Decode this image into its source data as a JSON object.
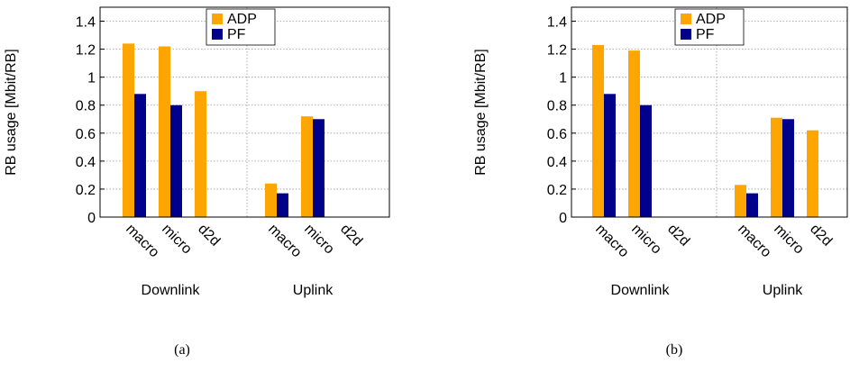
{
  "chart_data": [
    {
      "type": "bar",
      "caption": "(a)",
      "ylabel": "RB usage [Mbit/RB]",
      "ylim": [
        0,
        1.5
      ],
      "yticks": [
        0,
        0.2,
        0.4,
        0.6,
        0.8,
        1,
        1.2,
        1.4
      ],
      "ytick_labels": [
        "0",
        "0.2",
        "0.4",
        "0.6",
        "0.8",
        "1",
        "1.2",
        "1.4"
      ],
      "grid": true,
      "legend_position": "top-center",
      "group_labels": [
        "Downlink",
        "Uplink"
      ],
      "categories": [
        "macro",
        "micro",
        "d2d",
        "macro",
        "micro",
        "d2d"
      ],
      "series": [
        {
          "name": "ADP",
          "color": "#FFA500",
          "values": [
            1.24,
            1.22,
            0.9,
            0.24,
            0.72,
            0
          ]
        },
        {
          "name": "PF",
          "color": "#00008B",
          "values": [
            0.88,
            0.8,
            0,
            0.17,
            0.7,
            0
          ]
        }
      ]
    },
    {
      "type": "bar",
      "caption": "(b)",
      "ylabel": "RB usage [Mbit/RB]",
      "ylim": [
        0,
        1.5
      ],
      "yticks": [
        0,
        0.2,
        0.4,
        0.6,
        0.8,
        1,
        1.2,
        1.4
      ],
      "ytick_labels": [
        "0",
        "0.2",
        "0.4",
        "0.6",
        "0.8",
        "1",
        "1.2",
        "1.4"
      ],
      "grid": true,
      "legend_position": "top-center",
      "group_labels": [
        "Downlink",
        "Uplink"
      ],
      "categories": [
        "macro",
        "micro",
        "d2d",
        "macro",
        "micro",
        "d2d"
      ],
      "series": [
        {
          "name": "ADP",
          "color": "#FFA500",
          "values": [
            1.23,
            1.19,
            0,
            0.23,
            0.71,
            0.62
          ]
        },
        {
          "name": "PF",
          "color": "#00008B",
          "values": [
            0.88,
            0.8,
            0,
            0.17,
            0.7,
            0
          ]
        }
      ]
    }
  ]
}
